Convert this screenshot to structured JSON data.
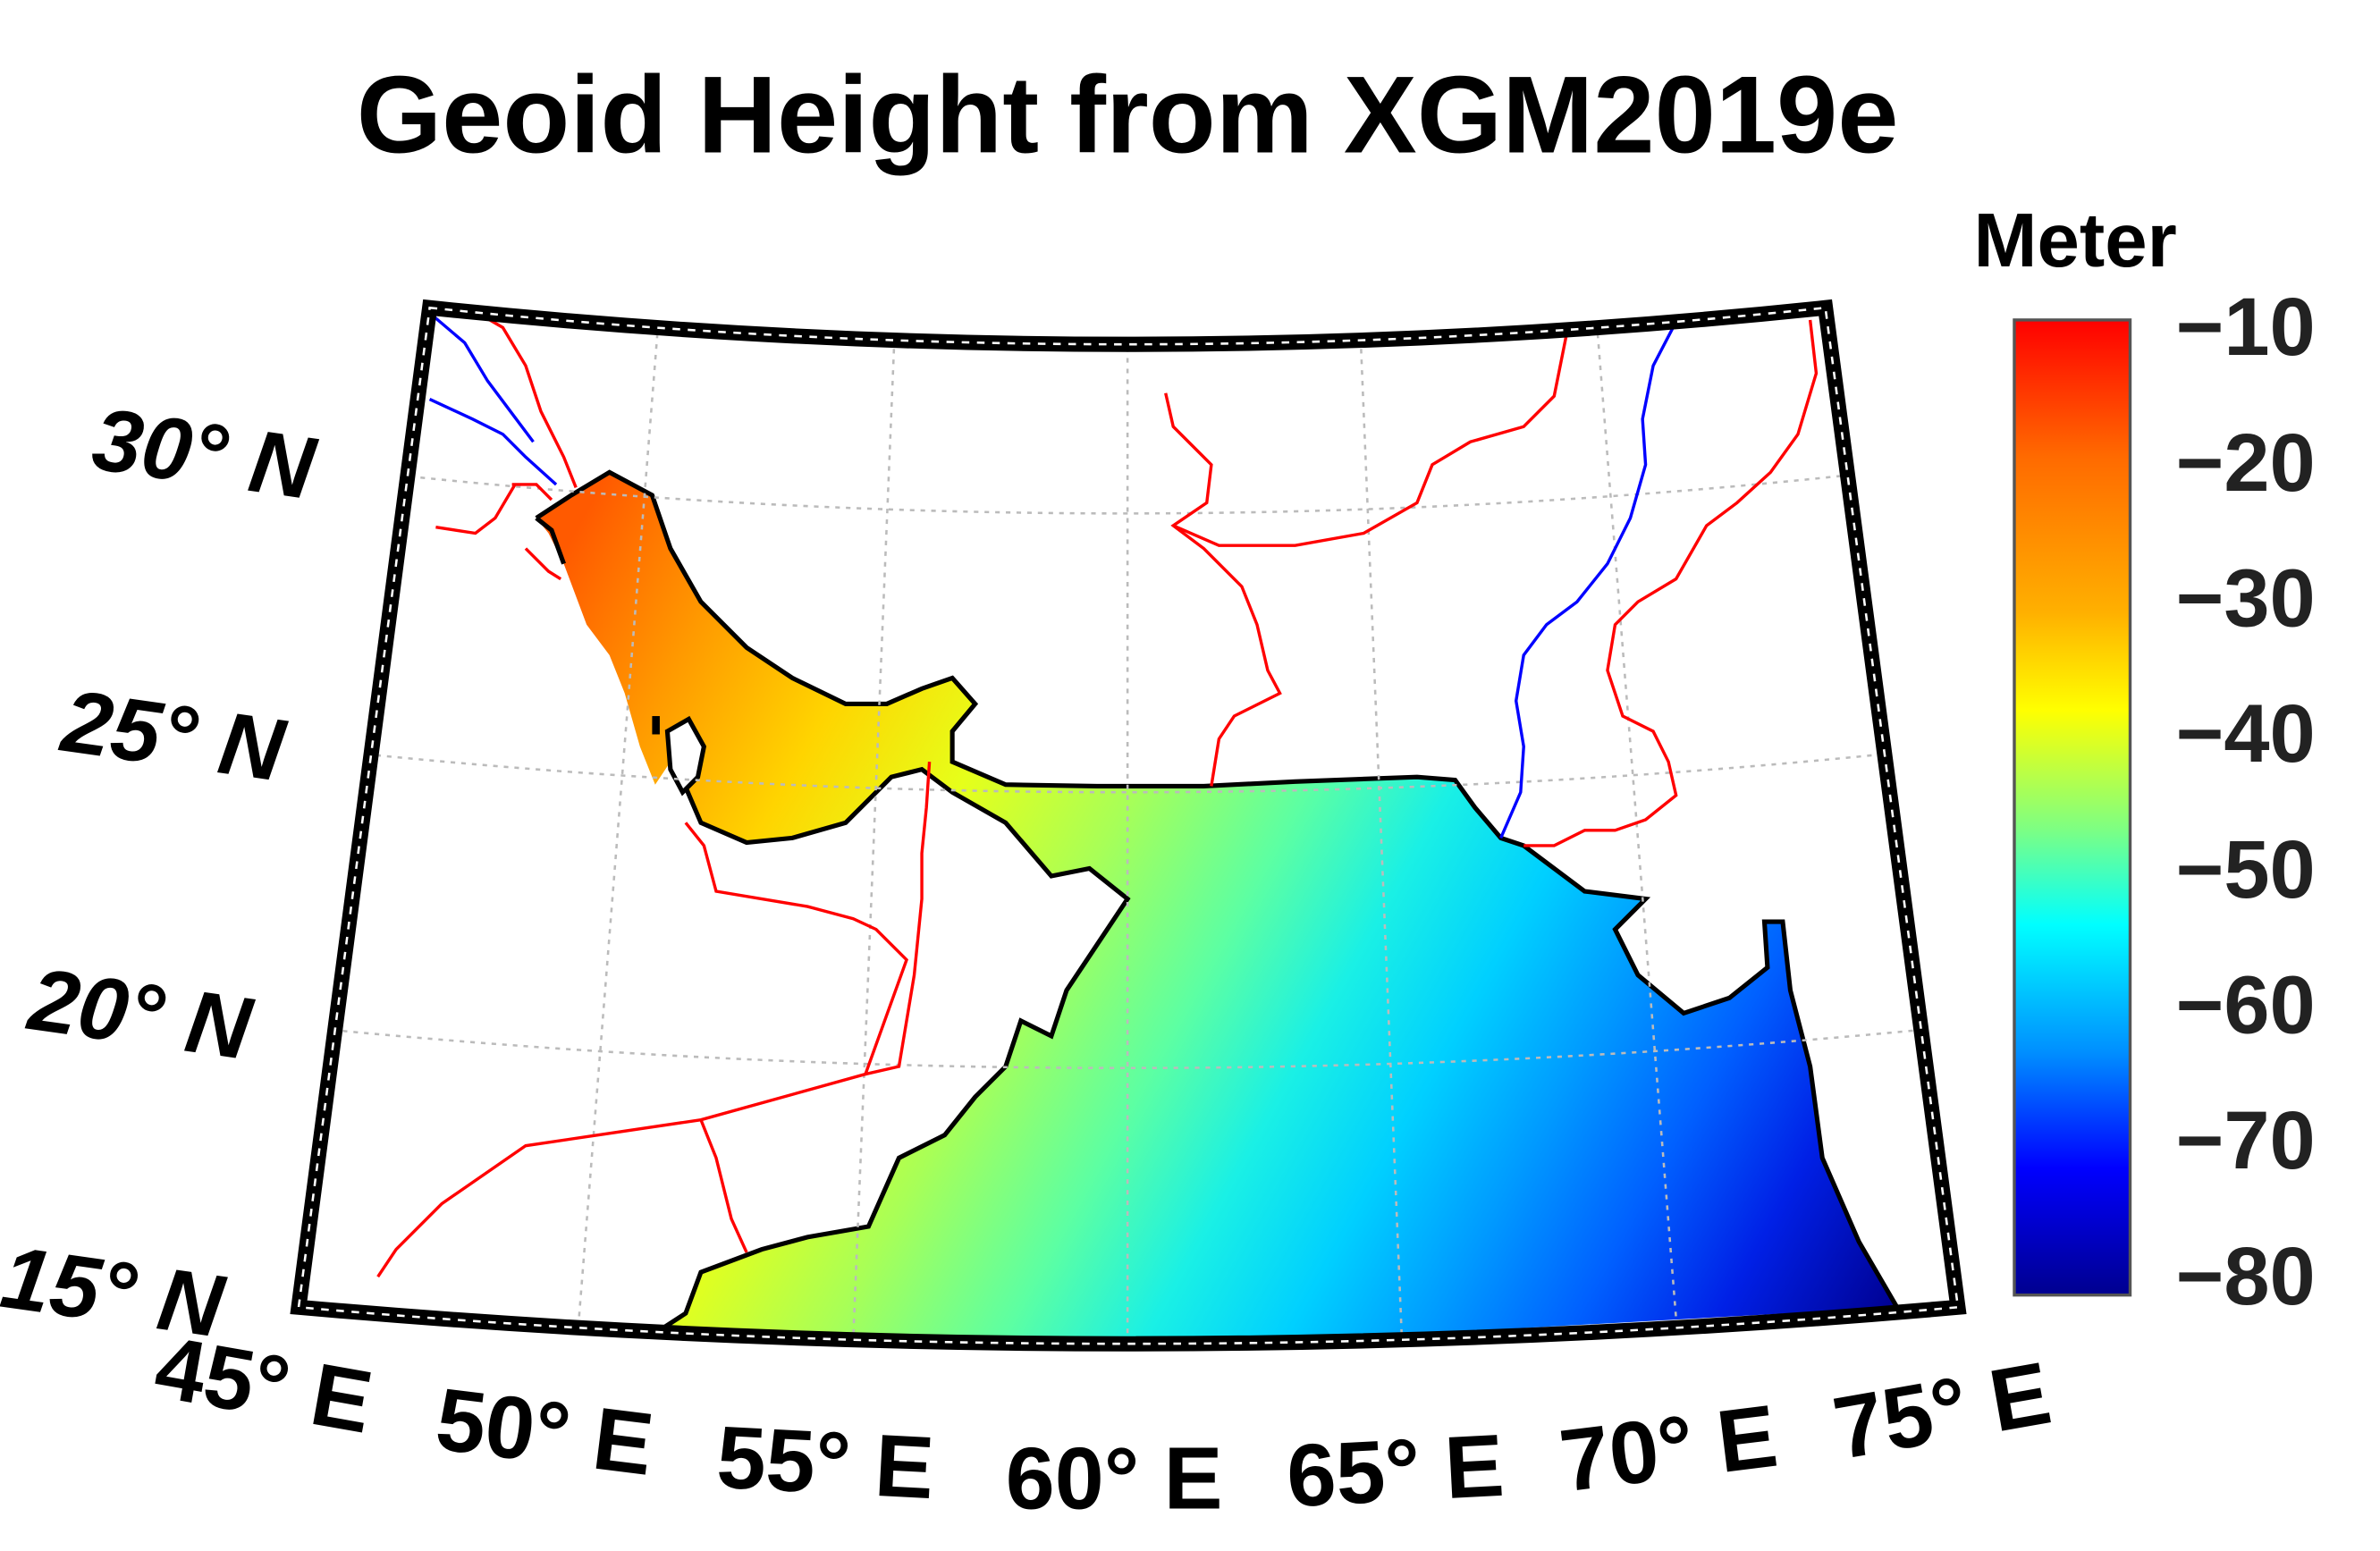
{
  "title": "Geoid Height from XGM2019e",
  "colorbar": {
    "unit": "Meter",
    "ticks": [
      "−10",
      "−20",
      "−30",
      "−40",
      "−50",
      "−60",
      "−70",
      "−80"
    ],
    "range": [
      -80,
      -10
    ],
    "colormap": "jet",
    "colors": [
      "#00008f",
      "#0000ff",
      "#0080ff",
      "#00ffff",
      "#80ff80",
      "#ffff00",
      "#ff8000",
      "#ff0000"
    ]
  },
  "lat_labels": [
    "30° N",
    "25° N",
    "20° N",
    "15° N"
  ],
  "lon_labels": [
    "45° E",
    "50° E",
    "55° E",
    "60° E",
    "65° E",
    "70° E",
    "75° E"
  ],
  "map": {
    "lat_range": [
      15,
      33
    ],
    "lon_range": [
      45,
      75
    ],
    "contour_interval_m": 5,
    "grid": "dotted",
    "border_color": "#ff0000",
    "river_color": "#0000ff",
    "coastline_color": "#000000"
  }
}
